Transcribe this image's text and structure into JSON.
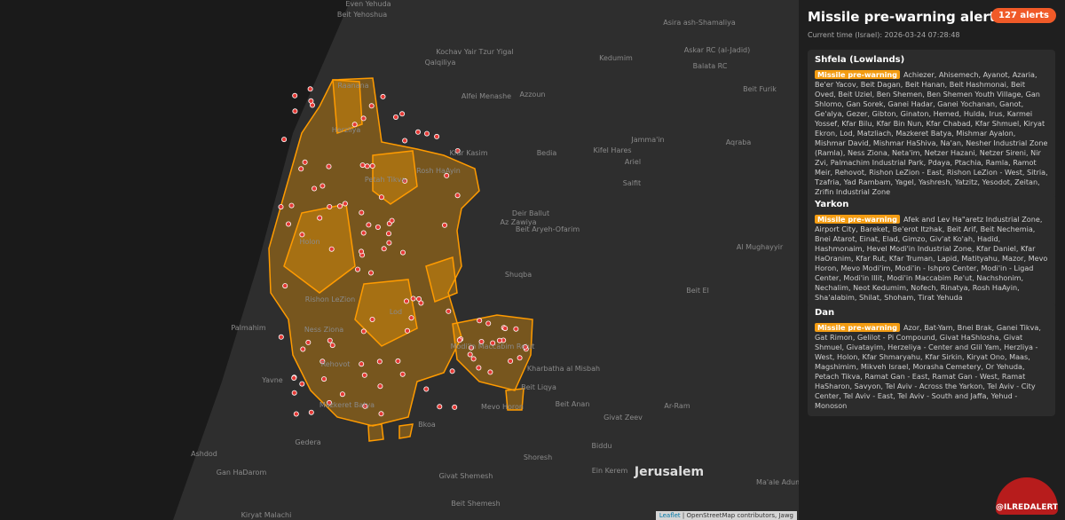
{
  "header": {
    "title": "Missile pre-warning alerts",
    "badge": "127 alerts",
    "time": "Current time (Israel): 2026-03-24 07:28:48"
  },
  "regions": [
    {
      "name": "Shfela (Lowlands)",
      "tag": "Missile pre-warning",
      "areas": "Achiezer, Ahisemech, Ayanot, Azaria, Be'er Yacov, Beit Dagan, Beit Hanan, Beit Hashmonai, Beit Oved, Beit Uziel, Ben Shemen, Ben Shemen Youth Village, Gan Shlomo, Gan Sorek, Ganei Hadar, Ganei Yochanan, Ganot, Ge'alya, Gezer, Gibton, Ginaton, Hemed, Hulda, Irus, Karmei Yossef, Kfar Bilu, Kfar Bin Nun, Kfar Chabad, Kfar Shmuel, Kiryat Ekron, Lod, Matzliach, Mazkeret Batya, Mishmar Ayalon, Mishmar David, Mishmar HaShiva, Na'an, Nesher Industrial Zone (Ramla), Ness Ziona, Neta'im, Netzer Hazani, Netzer Sireni, Nir Zvi, Palmachim Industrial Park, Pdaya, Ptachia, Ramla, Ramot Meir, Rehovot, Rishon LeZion - East, Rishon LeZion - West, Sitria, Tzafria, Yad Rambam, Yagel, Yashresh, Yatzitz, Yesodot, Zeitan, Zrifin Industrial Zone"
    },
    {
      "name": "Yarkon",
      "tag": "Missile pre-warning",
      "areas": "Afek and Lev Ha\"aretz Industrial Zone, Airport City, Bareket, Be'erot Itzhak, Beit Arif, Beit Nechemia, Bnei Atarot, Einat, Elad, Gimzo, Giv'at Ko'ah, Hadid, Hashmonaim, Hevel Modi'in Industrial Zone, Kfar Daniel, Kfar HaOranim, Kfar Rut, Kfar Truman, Lapid, Matityahu, Mazor, Mevo Horon, Mevo Modi'im, Modi'in - Ishpro Center, Modi'in - Ligad Center, Modi'in Illit, Modi'in Maccabim Re'ut, Nachshonim, Nechalim, Neot Kedumim, Nofech, Rinatya, Rosh HaAyin, Sha'alabim, Shilat, Shoham, Tirat Yehuda"
    },
    {
      "name": "Dan",
      "tag": "Missile pre-warning",
      "areas": "Azor, Bat-Yam, Bnei Brak, Ganei Tikva, Gat Rimon, Gelilot - Pi Compound, Givat HaShlosha, Givat Shmuel, Givatayim, Herzeliya - Center and Glil Yam, Herzliya - West, Holon, Kfar Shmaryahu, Kfar Sirkin, Kiryat Ono, Maas, Magshimim, Mikveh Israel, Morasha Cemetery, Or Yehuda, Petach Tikva, Ramat Gan - East, Ramat Gan - West, Ramat HaSharon, Savyon, Tel Aviv - Across the Yarkon, Tel Aviv - City Center, Tel Aviv - East, Tel Aviv - South and Jaffa, Yehud - Monoson"
    }
  ],
  "map": {
    "labels": [
      "Even Yehuda",
      "Beit Yehoshua",
      "Kochav Yair Tzur Yigal",
      "Qalqiliya",
      "Azzoun",
      "Raanana",
      "Herzliya",
      "Alfei Menashe",
      "Asira ash-Shamaliya",
      "Kedumim",
      "Askar RC (al-Jadid)",
      "Balata RC",
      "Beit Furik",
      "Kfar Kasim",
      "Jamma'in",
      "Aqraba",
      "Petah Tikva",
      "Rosh HaAyin",
      "Bedia",
      "Kifel Hares",
      "Ariel",
      "Salfit",
      "Holon",
      "Rishon LeZion",
      "Lod",
      "Ness Ziona",
      "Rehovot",
      "Yavne",
      "Mazkeret Batya",
      "Gedera",
      "Ashdod",
      "Palmahim",
      "Modi'in Maccabim Re'ut",
      "Beit Liqya",
      "Givat Zeev",
      "Biddu",
      "Jerusalem",
      "Ma'ale Adumim",
      "Kharbatha al Misbah",
      "Beit Aryeh-Ofarim",
      "Deir Ballut",
      "Az Zawiya",
      "Shuqba",
      "Beit El",
      "Mevo Horon",
      "Beit Anan",
      "Al Mughayyir",
      "Gan HaDarom",
      "Kiryat Malachi",
      "Beit Shemesh",
      "Givat Shemesh",
      "Bkoa",
      "Shoresh",
      "Ein Kerem",
      "Ar-Ram"
    ],
    "attribution": {
      "link": "Leaflet",
      "credits": "OpenStreetMap contributors, Jawg"
    }
  },
  "logo": "@ILREDALERT"
}
